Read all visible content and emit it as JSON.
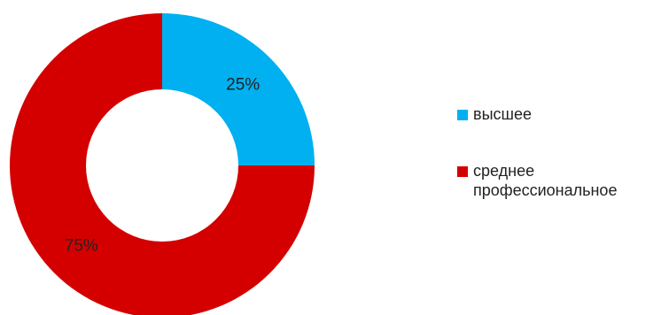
{
  "colors": {
    "vysshee": "#00b0f0",
    "srednee": "#d40000",
    "background": "#ffffff"
  },
  "chart_data": {
    "type": "pie",
    "variant": "donut",
    "title": "",
    "categories": [
      "высшее",
      "среднее профессиональное"
    ],
    "values": [
      25,
      75
    ],
    "data_labels": [
      "25%",
      "75%"
    ],
    "colors": [
      "#00b0f0",
      "#d40000"
    ],
    "legend": {
      "placement": "right",
      "entries": [
        "высшее",
        "среднее профессиональное"
      ]
    }
  }
}
